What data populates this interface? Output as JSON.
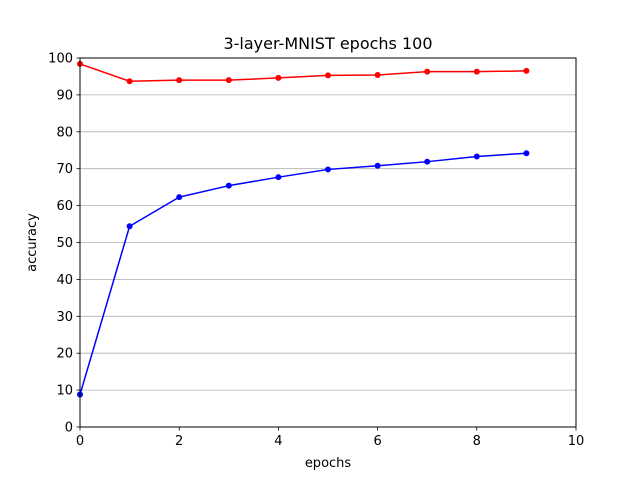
{
  "chart_data": {
    "type": "line",
    "title": "3-layer-MNIST epochs 100",
    "xlabel": "epochs",
    "ylabel": "accuracy",
    "xlim": [
      0,
      10
    ],
    "ylim": [
      0,
      100
    ],
    "xticks": [
      0,
      2,
      4,
      6,
      8,
      10
    ],
    "yticks": [
      0,
      10,
      20,
      30,
      40,
      50,
      60,
      70,
      80,
      90,
      100
    ],
    "grid": "horizontal",
    "x": [
      0,
      1,
      2,
      3,
      4,
      5,
      6,
      7,
      8,
      9
    ],
    "series": [
      {
        "color": "#ff0000",
        "values": [
          98.4,
          93.7,
          94.0,
          94.0,
          94.6,
          95.3,
          95.4,
          96.3,
          96.3,
          96.5
        ]
      },
      {
        "color": "#0000ff",
        "values": [
          8.8,
          54.4,
          62.3,
          65.4,
          67.7,
          69.8,
          70.8,
          71.9,
          73.3,
          74.2
        ]
      }
    ]
  }
}
